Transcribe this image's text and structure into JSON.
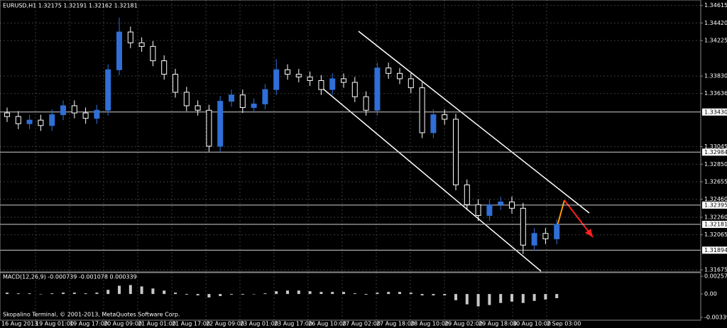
{
  "chart_data": {
    "type": "candlestick",
    "title": "EURUSD,H1  1.32175 1.32191 1.32162 1.32181",
    "footer": "Skopalino Terminal, © 2001-2013, MetaQuotes Software Corp.",
    "up_color": "#2f6fd6",
    "down_color": "#000000",
    "wick_color": "#ffffff",
    "grid": true,
    "ylim": [
      1.3166,
      1.3466
    ],
    "yticks": [
      1.34615,
      {
        "value": 1.3442,
        "label": "1.34420"
      },
      1.34225,
      {
        "value": 1.3383,
        "label": "1.33830"
      },
      1.33636,
      1.33045,
      {
        "value": 1.3285,
        "label": "1.32850"
      },
      1.32655,
      {
        "value": 1.3246,
        "label": "1.32460"
      },
      {
        "value": 1.3226,
        "label": "1.32260"
      },
      1.32065,
      1.31675
    ],
    "levels": [
      {
        "value": 1.3343,
        "label": "1.33430"
      },
      1.32984,
      1.32395,
      1.32181,
      1.31894
    ],
    "x_labels": [
      "16 Aug 2013",
      "19 Aug 01:00",
      "19 Aug 17:00",
      "20 Aug 09:00",
      "21 Aug 01:00",
      "21 Aug 17:00",
      "22 Aug 09:00",
      "23 Aug 01:00",
      "23 Aug 17:00",
      "26 Aug 10:00",
      "27 Aug 02:00",
      "27 Aug 18:00",
      "28 Aug 10:00",
      "29 Aug 02:00",
      "29 Aug 18:00",
      "30 Aug 10:00",
      "2 Sep 03:00"
    ],
    "open": [
      1.3342,
      1.3338,
      1.333,
      1.3334,
      1.3328,
      1.334,
      1.335,
      1.3342,
      1.3336,
      1.3345,
      1.339,
      1.3432,
      1.342,
      1.3416,
      1.34,
      1.3385,
      1.3365,
      1.335,
      1.3345,
      1.3305,
      1.3355,
      1.3362,
      1.3348,
      1.3352,
      1.3368,
      1.339,
      1.3385,
      1.3382,
      1.3378,
      1.3368,
      1.338,
      1.3376,
      1.336,
      1.3345,
      1.3392,
      1.3386,
      1.338,
      1.337,
      1.332,
      1.334,
      1.3335,
      1.3262,
      1.324,
      1.3228,
      1.324,
      1.3243,
      1.3236,
      1.3195,
      1.3208,
      1.3202
    ],
    "high": [
      1.3348,
      1.3344,
      1.334,
      1.334,
      1.3346,
      1.3356,
      1.3356,
      1.3348,
      1.3351,
      1.3396,
      1.3448,
      1.3438,
      1.3426,
      1.3422,
      1.3406,
      1.3391,
      1.3371,
      1.3356,
      1.3351,
      1.3361,
      1.3368,
      1.3368,
      1.3358,
      1.3374,
      1.3402,
      1.3396,
      1.3391,
      1.3388,
      1.3384,
      1.3386,
      1.3386,
      1.3382,
      1.3366,
      1.3398,
      1.3398,
      1.3392,
      1.3386,
      1.3376,
      1.3346,
      1.3346,
      1.3341,
      1.3268,
      1.3246,
      1.3246,
      1.3249,
      1.3249,
      1.3242,
      1.3214,
      1.3214,
      1.3224
    ],
    "low": [
      1.3332,
      1.3324,
      1.3324,
      1.3322,
      1.3322,
      1.3334,
      1.3336,
      1.333,
      1.333,
      1.3339,
      1.3384,
      1.3414,
      1.341,
      1.3394,
      1.3379,
      1.3359,
      1.3344,
      1.3339,
      1.3299,
      1.3299,
      1.3349,
      1.3342,
      1.3342,
      1.3346,
      1.3362,
      1.3379,
      1.3376,
      1.3372,
      1.3362,
      1.3362,
      1.337,
      1.3354,
      1.3339,
      1.3339,
      1.338,
      1.3374,
      1.3364,
      1.3314,
      1.3314,
      1.3329,
      1.3256,
      1.3234,
      1.3222,
      1.3222,
      1.3234,
      1.323,
      1.3185,
      1.3189,
      1.3196,
      1.3196
    ],
    "close": [
      1.3338,
      1.333,
      1.3334,
      1.3328,
      1.334,
      1.335,
      1.3342,
      1.3336,
      1.3345,
      1.339,
      1.3432,
      1.342,
      1.3416,
      1.34,
      1.3385,
      1.3365,
      1.335,
      1.3345,
      1.3305,
      1.3355,
      1.3362,
      1.3348,
      1.3352,
      1.3368,
      1.339,
      1.3385,
      1.3382,
      1.3378,
      1.3368,
      1.338,
      1.3376,
      1.336,
      1.3345,
      1.3392,
      1.3386,
      1.338,
      1.337,
      1.332,
      1.334,
      1.3335,
      1.3262,
      1.324,
      1.3228,
      1.324,
      1.3243,
      1.3236,
      1.3195,
      1.3208,
      1.3202,
      1.3218
    ],
    "macd": {
      "title": "MACD(12,26,9) -0.000739 -0.001078 0.000339",
      "color": "#c8c8c8",
      "ylim": [
        -0.0036,
        0.0029
      ],
      "yticks": [
        0.002575,
        {
          "value": 0,
          "label": "0.00"
        },
        -0.003395
      ],
      "values": [
        0.0002,
        0.0001,
        0.0001,
        0.0,
        0.0001,
        0.0002,
        0.0002,
        0.0001,
        0.0002,
        0.0006,
        0.0012,
        0.0013,
        0.0011,
        0.0008,
        0.0005,
        0.0002,
        -0.0001,
        -0.0002,
        -0.0005,
        -0.0003,
        -0.0001,
        -0.0001,
        0.0,
        0.0001,
        0.0004,
        0.0005,
        0.0005,
        0.0004,
        0.0003,
        0.0003,
        0.0003,
        0.0001,
        -0.0001,
        0.0002,
        0.0003,
        0.0003,
        0.0002,
        -0.0002,
        -0.0002,
        -0.0002,
        -0.0009,
        -0.0015,
        -0.0018,
        -0.0016,
        -0.0013,
        -0.0011,
        -0.0013,
        -0.001,
        -0.0008,
        -0.0006
      ]
    }
  }
}
